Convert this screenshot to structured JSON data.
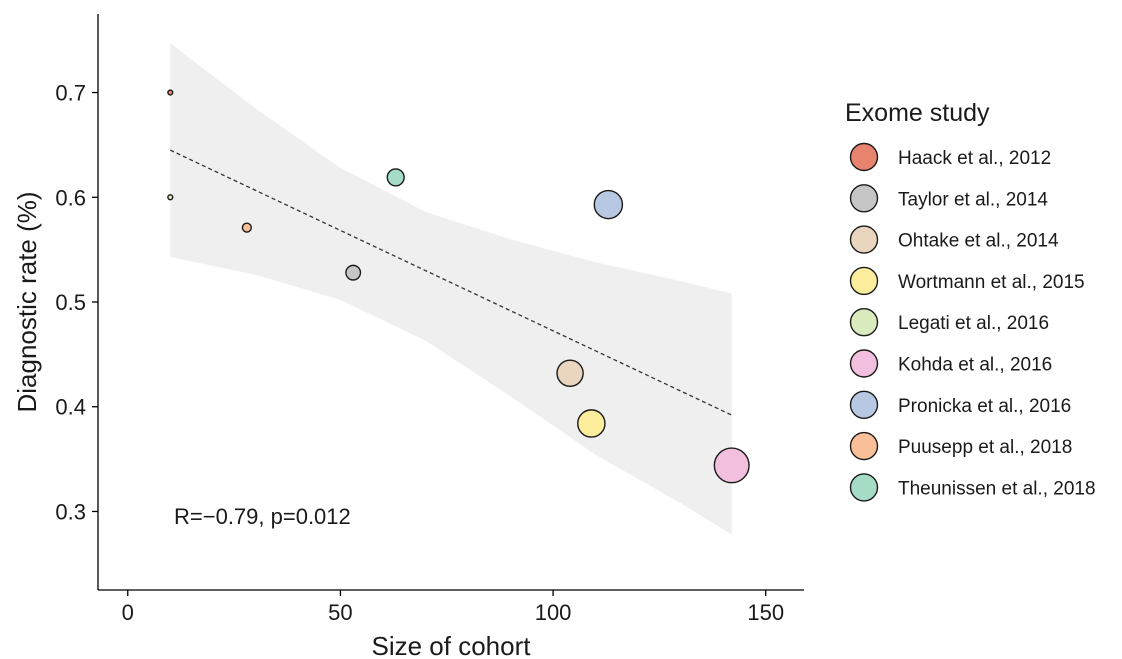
{
  "chart_data": {
    "type": "scatter",
    "xlabel": "Size of cohort",
    "ylabel": "Diagnostic rate (%)",
    "xlim": [
      -7,
      159
    ],
    "ylim": [
      0.225,
      0.775
    ],
    "x_ticks": [
      0,
      50,
      100,
      150
    ],
    "x_tick_labels": [
      "0",
      "50",
      "100",
      "150"
    ],
    "y_ticks": [
      0.3,
      0.4,
      0.5,
      0.6,
      0.7
    ],
    "y_tick_labels": [
      "0.3",
      "0.4",
      "0.5",
      "0.6",
      "0.7"
    ],
    "grid": false,
    "legend_title": "Exome study",
    "legend_position": "right",
    "annotation": "R=−0.79, p=0.012",
    "points": [
      {
        "study": "Haack et al., 2012",
        "x": 10,
        "y": 0.7,
        "color": "#e8836e"
      },
      {
        "study": "Taylor et al., 2014",
        "x": 53,
        "y": 0.528,
        "color": "#c6c6c6"
      },
      {
        "study": "Ohtake et al., 2014",
        "x": 104,
        "y": 0.432,
        "color": "#ead6bf"
      },
      {
        "study": "Wortmann et al., 2015",
        "x": 109,
        "y": 0.384,
        "color": "#fbed9b"
      },
      {
        "study": "Legati et al., 2016",
        "x": 10,
        "y": 0.6,
        "color": "#d9ebbc"
      },
      {
        "study": "Kohda et al., 2016",
        "x": 142,
        "y": 0.344,
        "color": "#f2bfdf"
      },
      {
        "study": "Pronicka et al., 2016",
        "x": 113,
        "y": 0.593,
        "color": "#b8c8e3"
      },
      {
        "study": "Puusepp et al., 2018",
        "x": 28,
        "y": 0.571,
        "color": "#f8bf98"
      },
      {
        "study": "Theunissen et al., 2018",
        "x": 63,
        "y": 0.619,
        "color": "#a6dcc6"
      }
    ],
    "fit": {
      "type": "linear",
      "line_style": "dashed",
      "from": {
        "x": 10,
        "y": 0.645
      },
      "to": {
        "x": 142,
        "y": 0.392
      }
    },
    "confidence_band": {
      "color": "#efefef",
      "x": [
        10,
        30,
        50,
        70,
        90,
        110,
        130,
        142
      ],
      "upper": [
        0.747,
        0.685,
        0.628,
        0.586,
        0.56,
        0.538,
        0.52,
        0.508
      ],
      "lower": [
        0.543,
        0.526,
        0.502,
        0.463,
        0.41,
        0.354,
        0.308,
        0.278
      ]
    }
  }
}
